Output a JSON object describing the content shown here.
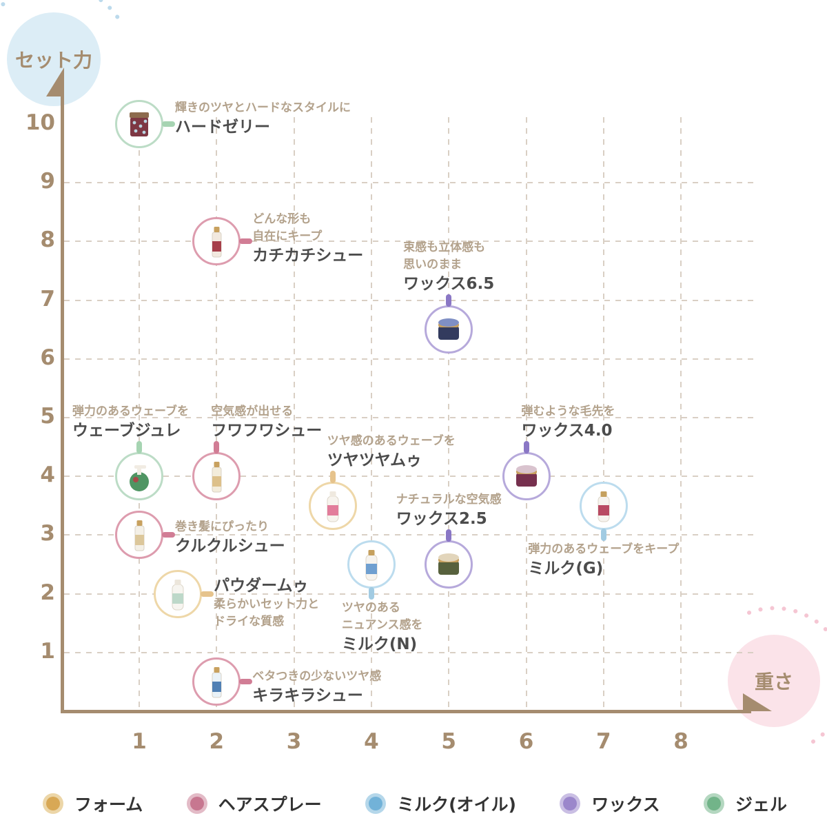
{
  "style": {
    "axis_color": "#a58c6f",
    "grid_color": "#d9cfc4",
    "tagline_color": "#b3a28c",
    "name_color": "#4c4c4c",
    "decor_blue_bg": "#dcedf6",
    "decor_blue_dots": "#bcdaec",
    "decor_pink_bg": "#fbe3e9",
    "decor_pink_dots": "#f5c6d3"
  },
  "chart_data": {
    "type": "scatter",
    "x_axis": {
      "label": "重さ",
      "ticks": [
        1,
        2,
        3,
        4,
        5,
        6,
        7,
        8
      ],
      "range": [
        0,
        9
      ]
    },
    "y_axis": {
      "label": "セット力",
      "ticks": [
        10,
        9,
        8,
        7,
        6,
        5,
        4,
        3,
        2,
        1
      ],
      "range": [
        0,
        10.8
      ]
    },
    "grid": true,
    "legend_position": "bottom",
    "legend": [
      {
        "key": "foam",
        "label": "フォーム",
        "dot": "#d8a855",
        "halo": "#ecd6a8",
        "stroke": "#eed7a8",
        "connector": "#e6c38c"
      },
      {
        "key": "hairspray",
        "label": "ヘアスプレー",
        "dot": "#c77790",
        "halo": "#e3bbc7",
        "stroke": "#dd9cae",
        "connector": "#d17d95"
      },
      {
        "key": "milk",
        "label": "ミルク(オイル)",
        "dot": "#72b2d8",
        "halo": "#b5d7ea",
        "stroke": "#bcdcee",
        "connector": "#a2cbe2"
      },
      {
        "key": "wax",
        "label": "ワックス",
        "dot": "#9b87cb",
        "halo": "#cabfe4",
        "stroke": "#b6a9db",
        "connector": "#8a77c5"
      },
      {
        "key": "gel",
        "label": "ジェル",
        "dot": "#72b489",
        "halo": "#b4d7c0",
        "stroke": "#bcdcc6",
        "connector": "#a6d4b2"
      }
    ],
    "points": [
      {
        "name": "ハードゼリー",
        "tagline": [
          "輝きのツヤとハードなスタイルに"
        ],
        "category": "gel",
        "x": 1,
        "y": 10,
        "label_pos": "right",
        "label_dy": -8,
        "icon": "jar",
        "icon_colors": {
          "body": "#7d3743",
          "accent": "#b9d6e2",
          "cap": "#8d6b4e"
        }
      },
      {
        "name": "カチカチシュー",
        "tagline": [
          "どんな形も",
          "自在にキープ"
        ],
        "category": "hairspray",
        "x": 2,
        "y": 8,
        "label_pos": "right",
        "label_dy": -4,
        "icon": "spray",
        "icon_colors": {
          "body": "#f2e9df",
          "accent": "#a63f4a",
          "cap": "#c8a15f"
        }
      },
      {
        "name": "ワックス6.5",
        "tagline": [
          "束感も立体感も",
          "思いのまま"
        ],
        "category": "wax",
        "x": 5,
        "y": 6.5,
        "label_pos": "above",
        "align": "center",
        "icon": "tin",
        "icon_colors": {
          "body": "#333b5e",
          "accent": "#7f8fc4",
          "cap": "#c8a15f"
        }
      },
      {
        "name": "ウェーブジュレ",
        "tagline": [
          "弾力のあるウェーブを"
        ],
        "category": "gel",
        "x": 1,
        "y": 4,
        "label_pos": "above",
        "align": "left",
        "label_dx": -97,
        "icon": "pump",
        "icon_colors": {
          "body": "#4f9563",
          "accent": "#a84949",
          "cap": "#f1ece3"
        }
      },
      {
        "name": "フワフワシュー",
        "tagline": [
          "空気感が出せる"
        ],
        "category": "hairspray",
        "x": 2,
        "y": 4,
        "label_pos": "above",
        "align": "left",
        "label_dx": -8,
        "icon": "spray",
        "icon_colors": {
          "body": "#f3ecdb",
          "accent": "#ddc08a",
          "cap": "#c8a15f"
        }
      },
      {
        "name": "ツヤツヤムゥ",
        "tagline": [
          "ツヤ感のあるウェーブを"
        ],
        "category": "foam",
        "x": 3.5,
        "y": 3.5,
        "label_pos": "above",
        "align": "left",
        "label_dx": -8,
        "icon": "bottle",
        "icon_colors": {
          "body": "#f7f4ee",
          "accent": "#e27d9b",
          "cap": "#efe9df"
        }
      },
      {
        "name": "ワックス4.0",
        "tagline": [
          "弾むような毛先を"
        ],
        "category": "wax",
        "x": 6,
        "y": 4,
        "label_pos": "above",
        "align": "left",
        "label_dx": -7,
        "icon": "tin",
        "icon_colors": {
          "body": "#76304e",
          "accent": "#d9c3ce",
          "cap": "#c8a15f"
        }
      },
      {
        "name": "クルクルシュー",
        "tagline": [
          "巻き髪にぴったり"
        ],
        "category": "hairspray",
        "x": 1,
        "y": 3,
        "label_pos": "right",
        "label_dy": 4,
        "icon": "spray",
        "icon_colors": {
          "body": "#f4f0e7",
          "accent": "#dcc79b",
          "cap": "#c8a15f"
        }
      },
      {
        "name": "ワックス2.5",
        "tagline": [
          "ナチュラルな空気感"
        ],
        "category": "wax",
        "x": 5,
        "y": 2.5,
        "label_pos": "above",
        "align": "center",
        "icon": "tin",
        "icon_colors": {
          "body": "#57613d",
          "accent": "#e2d5bb",
          "cap": "#c8a15f"
        }
      },
      {
        "name": "ミルク(N)",
        "tagline": [
          "ツヤのある",
          "ニュアンス感を"
        ],
        "category": "milk",
        "x": 4,
        "y": 2.5,
        "label_pos": "below",
        "align": "left",
        "label_dx": -43,
        "icon": "bottle",
        "icon_colors": {
          "body": "#f6f3ee",
          "accent": "#6f9fd0",
          "cap": "#c5a05e"
        }
      },
      {
        "name": "ミルク(G)",
        "tagline": [
          "弾力のあるウェーブをキープ"
        ],
        "category": "milk",
        "x": 7,
        "y": 3.5,
        "label_pos": "below",
        "align": "center",
        "icon": "bottle",
        "icon_colors": {
          "body": "#f6f3ee",
          "accent": "#b84a62",
          "cap": "#c5a05e"
        }
      },
      {
        "name": "パウダームゥ",
        "tagline": [
          "柔らかいセット力と",
          "ドライな質感"
        ],
        "category": "foam",
        "x": 1.5,
        "y": 2,
        "label_pos": "right",
        "label_dy": 13,
        "name_first": true,
        "icon": "bottle",
        "icon_colors": {
          "body": "#f7f5f0",
          "accent": "#bdd8c9",
          "cap": "#ece6db"
        }
      },
      {
        "name": "キラキラシュー",
        "tagline": [
          "ベタつきの少ないツヤ感"
        ],
        "category": "hairspray",
        "x": 2,
        "y": 0.5,
        "label_pos": "right",
        "label_dy": 8,
        "icon": "spray",
        "icon_colors": {
          "body": "#eaf2f8",
          "accent": "#5180b4",
          "cap": "#c8a15f"
        }
      }
    ]
  }
}
